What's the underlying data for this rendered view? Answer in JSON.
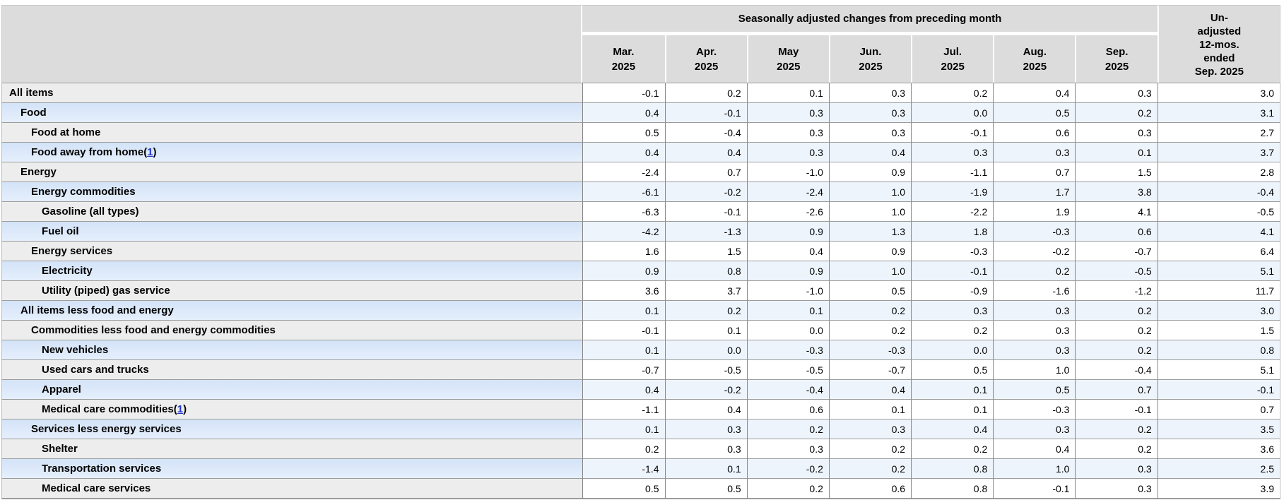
{
  "table": {
    "group_header": "Seasonally adjusted changes from preceding month",
    "month_columns": [
      [
        "Mar.",
        "2025"
      ],
      [
        "Apr.",
        "2025"
      ],
      [
        "May",
        "2025"
      ],
      [
        "Jun.",
        "2025"
      ],
      [
        "Jul.",
        "2025"
      ],
      [
        "Aug.",
        "2025"
      ],
      [
        "Sep.",
        "2025"
      ]
    ],
    "unadjusted_header_lines": [
      "Un-",
      "adjusted",
      "12-mos.",
      "ended",
      "Sep. 2025"
    ],
    "footnote_marker": "1",
    "rows": [
      {
        "label": "All items",
        "indent": 0,
        "footnote": false,
        "values": [
          "-0.1",
          "0.2",
          "0.1",
          "0.3",
          "0.2",
          "0.4",
          "0.3",
          "3.0"
        ]
      },
      {
        "label": "Food",
        "indent": 1,
        "footnote": false,
        "values": [
          "0.4",
          "-0.1",
          "0.3",
          "0.3",
          "0.0",
          "0.5",
          "0.2",
          "3.1"
        ]
      },
      {
        "label": "Food at home",
        "indent": 2,
        "footnote": false,
        "values": [
          "0.5",
          "-0.4",
          "0.3",
          "0.3",
          "-0.1",
          "0.6",
          "0.3",
          "2.7"
        ]
      },
      {
        "label": "Food away from home",
        "indent": 2,
        "footnote": true,
        "values": [
          "0.4",
          "0.4",
          "0.3",
          "0.4",
          "0.3",
          "0.3",
          "0.1",
          "3.7"
        ]
      },
      {
        "label": "Energy",
        "indent": 1,
        "footnote": false,
        "values": [
          "-2.4",
          "0.7",
          "-1.0",
          "0.9",
          "-1.1",
          "0.7",
          "1.5",
          "2.8"
        ]
      },
      {
        "label": "Energy commodities",
        "indent": 2,
        "footnote": false,
        "values": [
          "-6.1",
          "-0.2",
          "-2.4",
          "1.0",
          "-1.9",
          "1.7",
          "3.8",
          "-0.4"
        ]
      },
      {
        "label": "Gasoline (all types)",
        "indent": 3,
        "footnote": false,
        "values": [
          "-6.3",
          "-0.1",
          "-2.6",
          "1.0",
          "-2.2",
          "1.9",
          "4.1",
          "-0.5"
        ]
      },
      {
        "label": "Fuel oil",
        "indent": 3,
        "footnote": false,
        "values": [
          "-4.2",
          "-1.3",
          "0.9",
          "1.3",
          "1.8",
          "-0.3",
          "0.6",
          "4.1"
        ]
      },
      {
        "label": "Energy services",
        "indent": 2,
        "footnote": false,
        "values": [
          "1.6",
          "1.5",
          "0.4",
          "0.9",
          "-0.3",
          "-0.2",
          "-0.7",
          "6.4"
        ]
      },
      {
        "label": "Electricity",
        "indent": 3,
        "footnote": false,
        "values": [
          "0.9",
          "0.8",
          "0.9",
          "1.0",
          "-0.1",
          "0.2",
          "-0.5",
          "5.1"
        ]
      },
      {
        "label": "Utility (piped) gas service",
        "indent": 3,
        "footnote": false,
        "values": [
          "3.6",
          "3.7",
          "-1.0",
          "0.5",
          "-0.9",
          "-1.6",
          "-1.2",
          "11.7"
        ]
      },
      {
        "label": "All items less food and energy",
        "indent": 1,
        "footnote": false,
        "values": [
          "0.1",
          "0.2",
          "0.1",
          "0.2",
          "0.3",
          "0.3",
          "0.2",
          "3.0"
        ]
      },
      {
        "label": "Commodities less food and energy commodities",
        "indent": 2,
        "footnote": false,
        "values": [
          "-0.1",
          "0.1",
          "0.0",
          "0.2",
          "0.2",
          "0.3",
          "0.2",
          "1.5"
        ]
      },
      {
        "label": "New vehicles",
        "indent": 3,
        "footnote": false,
        "values": [
          "0.1",
          "0.0",
          "-0.3",
          "-0.3",
          "0.0",
          "0.3",
          "0.2",
          "0.8"
        ]
      },
      {
        "label": "Used cars and trucks",
        "indent": 3,
        "footnote": false,
        "values": [
          "-0.7",
          "-0.5",
          "-0.5",
          "-0.7",
          "0.5",
          "1.0",
          "-0.4",
          "5.1"
        ]
      },
      {
        "label": "Apparel",
        "indent": 3,
        "footnote": false,
        "values": [
          "0.4",
          "-0.2",
          "-0.4",
          "0.4",
          "0.1",
          "0.5",
          "0.7",
          "-0.1"
        ]
      },
      {
        "label": "Medical care commodities",
        "indent": 3,
        "footnote": true,
        "values": [
          "-1.1",
          "0.4",
          "0.6",
          "0.1",
          "0.1",
          "-0.3",
          "-0.1",
          "0.7"
        ]
      },
      {
        "label": "Services less energy services",
        "indent": 2,
        "footnote": false,
        "values": [
          "0.1",
          "0.3",
          "0.2",
          "0.3",
          "0.4",
          "0.3",
          "0.2",
          "3.5"
        ]
      },
      {
        "label": "Shelter",
        "indent": 3,
        "footnote": false,
        "values": [
          "0.2",
          "0.3",
          "0.3",
          "0.2",
          "0.2",
          "0.4",
          "0.2",
          "3.6"
        ]
      },
      {
        "label": "Transportation services",
        "indent": 3,
        "footnote": false,
        "values": [
          "-1.4",
          "0.1",
          "-0.2",
          "0.2",
          "0.8",
          "1.0",
          "0.3",
          "2.5"
        ]
      },
      {
        "label": "Medical care services",
        "indent": 3,
        "footnote": false,
        "values": [
          "0.5",
          "0.5",
          "0.2",
          "0.6",
          "0.8",
          "-0.1",
          "0.3",
          "3.9"
        ]
      }
    ]
  },
  "colors": {
    "header_bg": "#dcdcdc",
    "row_gray_label_bg": "#ededed",
    "row_blue_label_bg": "#d4e3f8",
    "row_blue_data_bg": "#eef4fc",
    "row_border": "#9c9c9c",
    "column_border": "#858585",
    "footnote_link": "#2233cc"
  },
  "chart_data": {
    "type": "table",
    "title": "Seasonally adjusted changes from preceding month",
    "categories": [
      "Mar. 2025",
      "Apr. 2025",
      "May 2025",
      "Jun. 2025",
      "Jul. 2025",
      "Aug. 2025",
      "Sep. 2025",
      "Un-adjusted 12-mos. ended Sep. 2025"
    ],
    "series": [
      {
        "name": "All items",
        "values": [
          -0.1,
          0.2,
          0.1,
          0.3,
          0.2,
          0.4,
          0.3,
          3.0
        ]
      },
      {
        "name": "Food",
        "values": [
          0.4,
          -0.1,
          0.3,
          0.3,
          0.0,
          0.5,
          0.2,
          3.1
        ]
      },
      {
        "name": "Food at home",
        "values": [
          0.5,
          -0.4,
          0.3,
          0.3,
          -0.1,
          0.6,
          0.3,
          2.7
        ]
      },
      {
        "name": "Food away from home(1)",
        "values": [
          0.4,
          0.4,
          0.3,
          0.4,
          0.3,
          0.3,
          0.1,
          3.7
        ]
      },
      {
        "name": "Energy",
        "values": [
          -2.4,
          0.7,
          -1.0,
          0.9,
          -1.1,
          0.7,
          1.5,
          2.8
        ]
      },
      {
        "name": "Energy commodities",
        "values": [
          -6.1,
          -0.2,
          -2.4,
          1.0,
          -1.9,
          1.7,
          3.8,
          -0.4
        ]
      },
      {
        "name": "Gasoline (all types)",
        "values": [
          -6.3,
          -0.1,
          -2.6,
          1.0,
          -2.2,
          1.9,
          4.1,
          -0.5
        ]
      },
      {
        "name": "Fuel oil",
        "values": [
          -4.2,
          -1.3,
          0.9,
          1.3,
          1.8,
          -0.3,
          0.6,
          4.1
        ]
      },
      {
        "name": "Energy services",
        "values": [
          1.6,
          1.5,
          0.4,
          0.9,
          -0.3,
          -0.2,
          -0.7,
          6.4
        ]
      },
      {
        "name": "Electricity",
        "values": [
          0.9,
          0.8,
          0.9,
          1.0,
          -0.1,
          0.2,
          -0.5,
          5.1
        ]
      },
      {
        "name": "Utility (piped) gas service",
        "values": [
          3.6,
          3.7,
          -1.0,
          0.5,
          -0.9,
          -1.6,
          -1.2,
          11.7
        ]
      },
      {
        "name": "All items less food and energy",
        "values": [
          0.1,
          0.2,
          0.1,
          0.2,
          0.3,
          0.3,
          0.2,
          3.0
        ]
      },
      {
        "name": "Commodities less food and energy commodities",
        "values": [
          -0.1,
          0.1,
          0.0,
          0.2,
          0.2,
          0.3,
          0.2,
          1.5
        ]
      },
      {
        "name": "New vehicles",
        "values": [
          0.1,
          0.0,
          -0.3,
          -0.3,
          0.0,
          0.3,
          0.2,
          0.8
        ]
      },
      {
        "name": "Used cars and trucks",
        "values": [
          -0.7,
          -0.5,
          -0.5,
          -0.7,
          0.5,
          1.0,
          -0.4,
          5.1
        ]
      },
      {
        "name": "Apparel",
        "values": [
          0.4,
          -0.2,
          -0.4,
          0.4,
          0.1,
          0.5,
          0.7,
          -0.1
        ]
      },
      {
        "name": "Medical care commodities(1)",
        "values": [
          -1.1,
          0.4,
          0.6,
          0.1,
          0.1,
          -0.3,
          -0.1,
          0.7
        ]
      },
      {
        "name": "Services less energy services",
        "values": [
          0.1,
          0.3,
          0.2,
          0.3,
          0.4,
          0.3,
          0.2,
          3.5
        ]
      },
      {
        "name": "Shelter",
        "values": [
          0.2,
          0.3,
          0.3,
          0.2,
          0.2,
          0.4,
          0.2,
          3.6
        ]
      },
      {
        "name": "Transportation services",
        "values": [
          -1.4,
          0.1,
          -0.2,
          0.2,
          0.8,
          1.0,
          0.3,
          2.5
        ]
      },
      {
        "name": "Medical care services",
        "values": [
          0.5,
          0.5,
          0.2,
          0.6,
          0.8,
          -0.1,
          0.3,
          3.9
        ]
      }
    ]
  }
}
